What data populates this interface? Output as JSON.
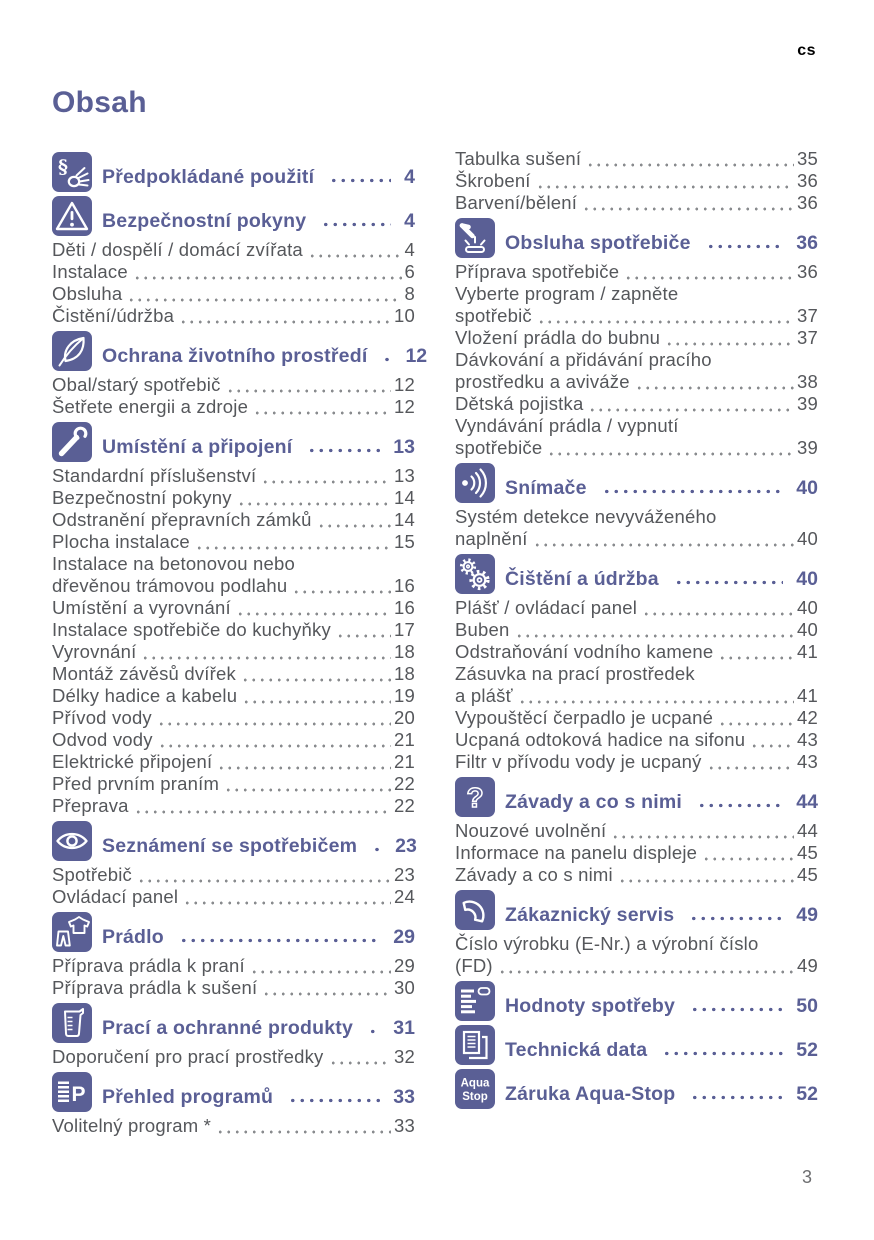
{
  "page": {
    "language_code": "cs",
    "title": "Obsah",
    "page_number": "3"
  },
  "colors": {
    "accent": "#5a5f95",
    "body_text": "#55575b",
    "leader_dots": "#898b8e",
    "page_number_label": "#6d6e70",
    "language_code": "#000000"
  },
  "icon_texts": {
    "paragraph": "§",
    "program_letter": "P",
    "question": "?",
    "aqua_line1": "Aqua",
    "aqua_line2": "Stop"
  },
  "columns": [
    {
      "blocks": [
        {
          "type": "section",
          "icon": "paragraph-hand-icon",
          "title": "Předpokládané použití",
          "page": "4"
        },
        {
          "type": "section",
          "icon": "warning-triangle-icon",
          "title": "Bezpečnostní pokyny",
          "page": "4"
        },
        {
          "type": "entries",
          "items": [
            {
              "lines": [
                "Děti / dospělí / domácí zvířata"
              ],
              "page": "4"
            },
            {
              "lines": [
                "Instalace"
              ],
              "page": "6"
            },
            {
              "lines": [
                "Obsluha"
              ],
              "page": "8"
            },
            {
              "lines": [
                "Čistění/údržba"
              ],
              "page": "10"
            }
          ]
        },
        {
          "type": "section",
          "icon": "leaf-icon",
          "title": "Ochrana životního prostředí",
          "page": "12"
        },
        {
          "type": "entries",
          "items": [
            {
              "lines": [
                "Obal/starý spotřebič"
              ],
              "page": "12"
            },
            {
              "lines": [
                "Šetřete energii a zdroje"
              ],
              "page": "12"
            }
          ]
        },
        {
          "type": "section",
          "icon": "wrench-icon",
          "title": "Umístění a připojení",
          "page": "13"
        },
        {
          "type": "entries",
          "items": [
            {
              "lines": [
                "Standardní příslušenství"
              ],
              "page": "13"
            },
            {
              "lines": [
                "Bezpečnostní pokyny"
              ],
              "page": "14"
            },
            {
              "lines": [
                "Odstranění přepravních zámků"
              ],
              "page": "14"
            },
            {
              "lines": [
                "Plocha instalace"
              ],
              "page": "15"
            },
            {
              "lines": [
                "Instalace na betonovou nebo",
                "dřevěnou trámovou podlahu"
              ],
              "page": "16"
            },
            {
              "lines": [
                "Umístění a vyrovnání"
              ],
              "page": "16"
            },
            {
              "lines": [
                "Instalace spotřebiče do kuchyňky"
              ],
              "page": "17"
            },
            {
              "lines": [
                "Vyrovnání"
              ],
              "page": "18"
            },
            {
              "lines": [
                "Montáž závěsů dvířek"
              ],
              "page": "18"
            },
            {
              "lines": [
                "Délky hadice a kabelu"
              ],
              "page": "19"
            },
            {
              "lines": [
                "Přívod vody"
              ],
              "page": "20"
            },
            {
              "lines": [
                "Odvod vody"
              ],
              "page": "21"
            },
            {
              "lines": [
                "Elektrické připojení"
              ],
              "page": "21"
            },
            {
              "lines": [
                "Před prvním praním"
              ],
              "page": "22"
            },
            {
              "lines": [
                "Přeprava"
              ],
              "page": "22"
            }
          ]
        },
        {
          "type": "section",
          "icon": "eye-icon",
          "title": "Seznámení se spotřebičem",
          "page": "23"
        },
        {
          "type": "entries",
          "items": [
            {
              "lines": [
                "Spotřebič"
              ],
              "page": "23"
            },
            {
              "lines": [
                "Ovládací panel"
              ],
              "page": "24"
            }
          ]
        },
        {
          "type": "section",
          "icon": "laundry-clothes-icon",
          "title": "Prádlo",
          "page": "29"
        },
        {
          "type": "entries",
          "items": [
            {
              "lines": [
                "Příprava prádla k praní"
              ],
              "page": "29"
            },
            {
              "lines": [
                "Příprava prádla k sušení"
              ],
              "page": "30"
            }
          ]
        },
        {
          "type": "section",
          "icon": "measuring-cup-icon",
          "title": "Prací a ochranné produkty",
          "page": "31"
        },
        {
          "type": "entries",
          "items": [
            {
              "lines": [
                "Doporučení pro prací prostředky"
              ],
              "page": "32"
            }
          ]
        },
        {
          "type": "section",
          "icon": "program-list-icon",
          "title": "Přehled programů",
          "page": "33"
        },
        {
          "type": "entries",
          "items": [
            {
              "lines": [
                "Volitelný program *"
              ],
              "page": "33"
            }
          ]
        }
      ]
    },
    {
      "blocks": [
        {
          "type": "entries",
          "items": [
            {
              "lines": [
                "Tabulka sušení"
              ],
              "page": "35"
            },
            {
              "lines": [
                "Škrobení"
              ],
              "page": "36"
            },
            {
              "lines": [
                "Barvení/bělení"
              ],
              "page": "36"
            }
          ]
        },
        {
          "type": "section",
          "icon": "hand-press-button-icon",
          "title": "Obsluha spotřebiče",
          "page": "36"
        },
        {
          "type": "entries",
          "items": [
            {
              "lines": [
                "Příprava spotřebiče"
              ],
              "page": "36"
            },
            {
              "lines": [
                "Vyberte program / zapněte",
                "spotřebič"
              ],
              "page": "37"
            },
            {
              "lines": [
                "Vložení prádla do bubnu"
              ],
              "page": "37"
            },
            {
              "lines": [
                "Dávkování a přidávání pracího",
                "prostředku a aviváže"
              ],
              "page": "38"
            },
            {
              "lines": [
                "Dětská pojistka"
              ],
              "page": "39"
            },
            {
              "lines": [
                "Vyndávání prádla / vypnutí",
                "spotřebiče"
              ],
              "page": "39"
            }
          ]
        },
        {
          "type": "section",
          "icon": "sensor-signal-icon",
          "title": "Snímače",
          "page": "40"
        },
        {
          "type": "entries",
          "items": [
            {
              "lines": [
                "Systém detekce nevyváženého",
                "naplnění"
              ],
              "page": "40"
            }
          ]
        },
        {
          "type": "section",
          "icon": "gears-icon",
          "title": "Čištění a údržba",
          "page": "40"
        },
        {
          "type": "entries",
          "items": [
            {
              "lines": [
                "Plášť / ovládací panel"
              ],
              "page": "40"
            },
            {
              "lines": [
                "Buben"
              ],
              "page": "40"
            },
            {
              "lines": [
                "Odstraňování vodního kamene"
              ],
              "page": "41"
            },
            {
              "lines": [
                "Zásuvka na prací prostředek",
                "a plášť"
              ],
              "page": "41"
            },
            {
              "lines": [
                "Vypouštěcí čerpadlo je ucpané"
              ],
              "page": "42"
            },
            {
              "lines": [
                "Ucpaná odtoková hadice na sifonu"
              ],
              "page": "43"
            },
            {
              "lines": [
                "Filtr v přívodu vody je ucpaný"
              ],
              "page": "43"
            }
          ]
        },
        {
          "type": "section",
          "icon": "question-mark-icon",
          "title": "Závady a co s nimi",
          "page": "44"
        },
        {
          "type": "entries",
          "items": [
            {
              "lines": [
                "Nouzové uvolnění"
              ],
              "page": "44"
            },
            {
              "lines": [
                "Informace na panelu displeje"
              ],
              "page": "45"
            },
            {
              "lines": [
                "Závady a co s nimi"
              ],
              "page": "45"
            }
          ]
        },
        {
          "type": "section",
          "icon": "phone-handset-icon",
          "title": "Zákaznický servis",
          "page": "49"
        },
        {
          "type": "entries",
          "items": [
            {
              "lines": [
                "Číslo výrobku (E-Nr.) a výrobní číslo",
                "(FD)"
              ],
              "page": "49"
            }
          ]
        },
        {
          "type": "section",
          "icon": "consumption-bars-icon",
          "title": "Hodnoty spotřeby",
          "page": "50"
        },
        {
          "type": "section",
          "icon": "document-sheets-icon",
          "title": "Technická data",
          "page": "52"
        },
        {
          "type": "section",
          "icon": "aqua-stop-icon",
          "title": "Záruka Aqua-Stop",
          "page": "52"
        }
      ]
    }
  ]
}
